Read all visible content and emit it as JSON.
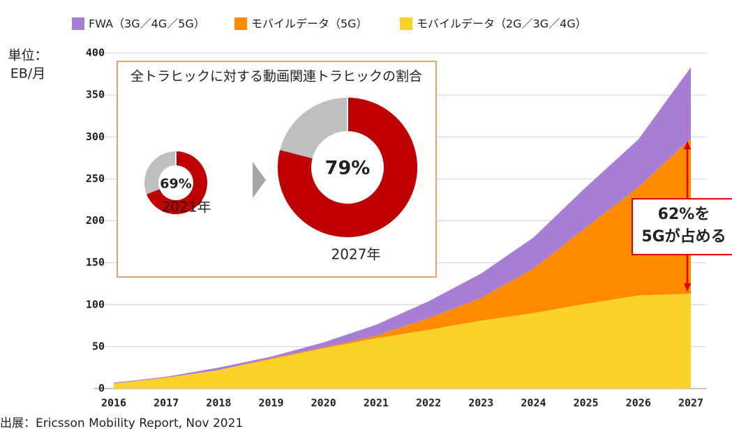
{
  "chart_data": [
    {
      "type": "stacked_area",
      "unit_label": [
        "単位：",
        "EB/月"
      ],
      "x": [
        2016,
        2017,
        2018,
        2019,
        2020,
        2021,
        2022,
        2023,
        2024,
        2025,
        2026,
        2027
      ],
      "xlim": [
        2016,
        2027
      ],
      "xticks": [
        2016,
        2017,
        2018,
        2019,
        2020,
        2021,
        2022,
        2023,
        2024,
        2025,
        2026,
        2027
      ],
      "ylim": [
        0,
        400
      ],
      "yticks": [
        0,
        50,
        100,
        150,
        200,
        250,
        300,
        350,
        400
      ],
      "grid": true,
      "series": [
        {
          "name": "モバイルデータ（2G／3G／4G）",
          "color": "#fad22a",
          "values": [
            6,
            13,
            22,
            35,
            48,
            60,
            70,
            81,
            90,
            101,
            111,
            113
          ]
        },
        {
          "name": "モバイルデータ（5G）",
          "color": "#ff8c00",
          "values": [
            0,
            0,
            0,
            1,
            1,
            3,
            14,
            27,
            53,
            91,
            129,
            185
          ]
        },
        {
          "name": "FWA（3G／4G／5G）",
          "color": "#a87dd6",
          "values": [
            1,
            1,
            3,
            2,
            6,
            13,
            20,
            29,
            37,
            48,
            57,
            85
          ]
        }
      ],
      "annotation": [
        "62%を",
        "5Gが占める"
      ],
      "source": "出展：Ericsson Mobility Report, Nov 2021"
    },
    {
      "type": "donut",
      "title": "全トラヒックに対する動画関連トラヒックの割合",
      "categories": [
        "2021年",
        "2027年"
      ],
      "values": [
        69,
        79
      ],
      "value_labels": [
        "69%",
        "79%"
      ],
      "color": "#c00000",
      "rest_color": "#bfbfbf"
    }
  ]
}
